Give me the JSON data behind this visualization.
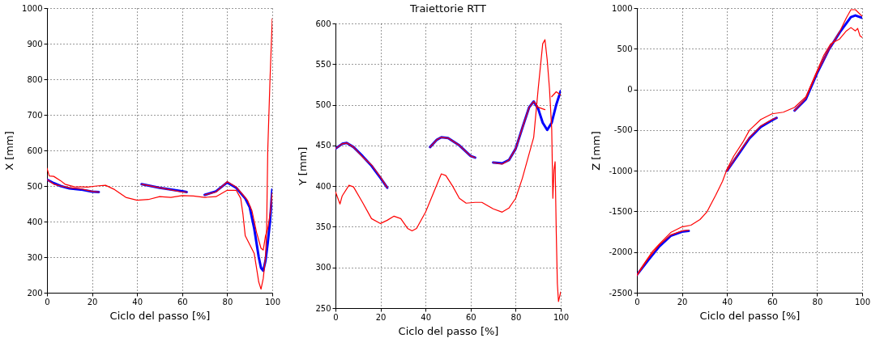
{
  "chart_data": [
    {
      "type": "line",
      "xlabel": "Ciclo del passo [%]",
      "ylabel": "X [mm]",
      "xlim": [
        0,
        100
      ],
      "xticks": [
        0,
        20,
        40,
        60,
        80,
        100
      ],
      "ylim": [
        200,
        1000
      ],
      "yticks": [
        200,
        300,
        400,
        500,
        600,
        700,
        800,
        900,
        1000
      ],
      "grid": true,
      "series": [
        {
          "color": "#0000ff",
          "x": [
            0,
            3,
            6,
            10,
            15,
            20,
            23,
            30,
            42,
            50,
            60,
            62,
            66,
            70,
            75,
            80,
            84,
            88,
            90,
            92,
            94,
            95,
            96,
            97,
            98,
            99,
            100
          ],
          "values": [
            518,
            508,
            500,
            493,
            490,
            484,
            483,
            null,
            505,
            495,
            485,
            483,
            null,
            475,
            485,
            510,
            495,
            465,
            440,
            380,
            300,
            270,
            262,
            290,
            340,
            400,
            490
          ]
        },
        {
          "color": "#ff0000",
          "x": [
            0,
            3,
            6,
            10,
            15,
            20,
            23,
            30,
            42,
            50,
            60,
            62,
            66,
            70,
            75,
            80,
            84,
            87,
            89,
            91,
            93,
            95,
            96,
            97,
            98,
            99,
            100
          ],
          "values": [
            518,
            505,
            500,
            495,
            492,
            485,
            483,
            null,
            505,
            495,
            483,
            483,
            null,
            475,
            483,
            512,
            497,
            475,
            460,
            430,
            370,
            325,
            320,
            360,
            380,
            420,
            480
          ]
        },
        {
          "color": "#ff0000",
          "x": [
            0,
            1,
            3,
            6,
            8,
            12,
            18,
            22,
            26,
            30,
            35,
            40,
            45,
            50,
            55,
            60,
            65,
            70,
            75,
            80,
            84,
            86,
            87,
            88,
            90,
            92,
            93,
            94,
            95,
            96,
            97,
            97.5,
            98,
            99,
            100
          ],
          "values": [
            550,
            528,
            527,
            515,
            505,
            498,
            497,
            500,
            502,
            490,
            468,
            460,
            462,
            470,
            468,
            473,
            472,
            468,
            470,
            488,
            488,
            465,
            420,
            360,
            335,
            310,
            270,
            230,
            210,
            240,
            300,
            380,
            600,
            800,
            970
          ]
        }
      ]
    },
    {
      "type": "line",
      "title": "Traiettorie RTT",
      "xlabel": "Ciclo del passo [%]",
      "ylabel": "Y [mm]",
      "xlim": [
        0,
        100
      ],
      "xticks": [
        0,
        20,
        40,
        60,
        80,
        100
      ],
      "ylim": [
        250,
        600
      ],
      "yticks": [
        250,
        300,
        350,
        400,
        450,
        500,
        550,
        600
      ],
      "grid": true,
      "series": [
        {
          "color": "#0000ff",
          "x": [
            0,
            3,
            5,
            8,
            12,
            16,
            20,
            23,
            30,
            42,
            45,
            47,
            50,
            55,
            60,
            62,
            66,
            70,
            74,
            77,
            80,
            83,
            86,
            88,
            90,
            92,
            94,
            96,
            98,
            100
          ],
          "values": [
            446,
            452,
            453,
            448,
            437,
            425,
            410,
            398,
            null,
            448,
            457,
            460,
            459,
            450,
            437,
            435,
            null,
            429,
            428,
            432,
            446,
            472,
            497,
            504,
            495,
            478,
            469,
            478,
            500,
            517
          ]
        },
        {
          "color": "#ff0000",
          "x": [
            0,
            3,
            5,
            8,
            12,
            16,
            20,
            23,
            30,
            42,
            45,
            47,
            50,
            55,
            60,
            62,
            66,
            70,
            74,
            77,
            80,
            83,
            86,
            88,
            90,
            93,
            94.5,
            96,
            98,
            100
          ],
          "values": [
            446,
            452,
            453,
            448,
            436,
            426,
            411,
            398,
            null,
            448,
            457,
            460,
            459,
            450,
            437,
            435,
            null,
            429,
            427,
            432,
            446,
            472,
            497,
            504,
            497,
            494,
            null,
            510,
            516,
            512
          ]
        },
        {
          "color": "#ff0000",
          "x": [
            0,
            2,
            3,
            6,
            8,
            12,
            16,
            20,
            23,
            26,
            29,
            32,
            34,
            36,
            40,
            44,
            47,
            49,
            52,
            55,
            58,
            62,
            65,
            70,
            74,
            77,
            80,
            83,
            86,
            88,
            90,
            92,
            93,
            94,
            95,
            96,
            96.5,
            97,
            97.5,
            98,
            98.5,
            99,
            100
          ],
          "values": [
            393,
            378,
            388,
            401,
            399,
            380,
            360,
            354,
            358,
            363,
            360,
            348,
            345,
            348,
            368,
            395,
            415,
            413,
            400,
            385,
            379,
            380,
            380,
            372,
            368,
            373,
            385,
            410,
            440,
            460,
            520,
            575,
            580,
            555,
            520,
            470,
            385,
            420,
            430,
            345,
            280,
            258,
            270
          ]
        }
      ]
    },
    {
      "type": "line",
      "xlabel": "Ciclo del passo [%]",
      "ylabel": "Z [mm]",
      "xlim": [
        0,
        100
      ],
      "xticks": [
        0,
        20,
        40,
        60,
        80,
        100
      ],
      "ylim": [
        -2500,
        1000
      ],
      "yticks": [
        -2500,
        -2000,
        -1500,
        -1000,
        -500,
        0,
        500,
        1000
      ],
      "grid": true,
      "series": [
        {
          "color": "#0000ff",
          "x": [
            0,
            5,
            10,
            15,
            20,
            23,
            30,
            40,
            45,
            50,
            55,
            60,
            62,
            66,
            70,
            75,
            80,
            85,
            90,
            95,
            97,
            100
          ],
          "values": [
            -2280,
            -2100,
            -1930,
            -1800,
            -1750,
            -1740,
            null,
            -1000,
            -800,
            -600,
            -460,
            -380,
            -350,
            null,
            -260,
            -120,
            200,
            480,
            700,
            890,
            910,
            880
          ]
        },
        {
          "color": "#ff0000",
          "x": [
            0,
            5,
            10,
            15,
            20,
            23,
            30,
            40,
            45,
            50,
            55,
            60,
            62,
            66,
            70,
            75,
            80,
            85,
            90,
            93,
            95,
            97,
            100
          ],
          "values": [
            -2290,
            -2080,
            -1910,
            -1790,
            -1740,
            -1730,
            null,
            -1000,
            -790,
            -590,
            -450,
            -370,
            -350,
            null,
            -260,
            -110,
            210,
            480,
            710,
            880,
            980,
            980,
            900
          ]
        },
        {
          "color": "#ff0000",
          "x": [
            0,
            3,
            7,
            10,
            15,
            20,
            24,
            28,
            31,
            35,
            38,
            40,
            43,
            47,
            50,
            55,
            60,
            65,
            70,
            75,
            78,
            80,
            83,
            86,
            90,
            93,
            95,
            97,
            98,
            99,
            100
          ],
          "values": [
            -2280,
            -2150,
            -1990,
            -1900,
            -1760,
            -1690,
            -1670,
            -1600,
            -1510,
            -1300,
            -1130,
            -980,
            -820,
            -650,
            -500,
            -370,
            -300,
            -280,
            -220,
            -90,
            100,
            230,
            420,
            560,
            620,
            720,
            760,
            720,
            750,
            660,
            640
          ]
        }
      ]
    }
  ]
}
